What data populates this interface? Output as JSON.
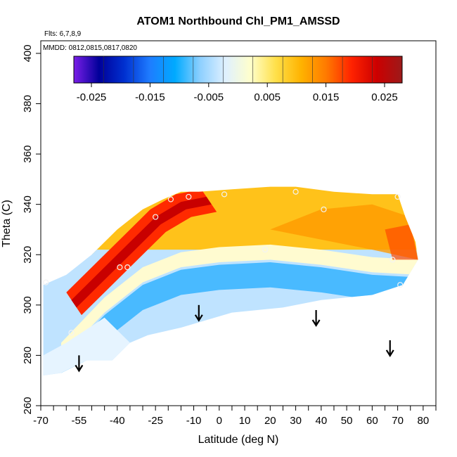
{
  "chart_data": {
    "type": "heatmap",
    "title": "ATOM1 Northbound Chl_PM1_AMSSD",
    "flights_label": "Flts: 6,7,8,9",
    "dates_label": "MMDD: 0812,0815,0817,0820",
    "xlabel": "Latitude (deg N)",
    "ylabel": "Theta (C)",
    "xlim": [
      -70,
      85
    ],
    "ylim": [
      260,
      405
    ],
    "x_ticks": [
      -70,
      -55,
      -40,
      -25,
      -10,
      0,
      10,
      20,
      30,
      40,
      50,
      60,
      70,
      80
    ],
    "x_minor_ticks": [
      -65,
      -60,
      -50,
      -45,
      -35,
      -30,
      -20,
      -15,
      -5,
      5,
      15,
      25,
      35,
      45,
      55,
      65,
      75,
      85
    ],
    "y_ticks": [
      260,
      280,
      300,
      320,
      340,
      360,
      380,
      400
    ],
    "colorbar": {
      "range": [
        -0.028,
        0.028
      ],
      "tick_values": [
        -0.025,
        -0.015,
        -0.005,
        0.005,
        0.015,
        0.025
      ],
      "tick_labels": [
        "-0.025",
        "-0.015",
        "-0.005",
        "0.005",
        "0.015",
        "0.025"
      ],
      "colors": [
        "#7a1ee8",
        "#000099",
        "#0030d0",
        "#1e7cff",
        "#00aaff",
        "#8ed0ff",
        "#dff0ff",
        "#ffffcc",
        "#ffe04a",
        "#ffb300",
        "#ff7a00",
        "#ff2200",
        "#cc0000",
        "#9c1a1a"
      ]
    },
    "field_shape": {
      "outline": [
        [
          -69,
          272
        ],
        [
          -69,
          308
        ],
        [
          -60,
          312
        ],
        [
          -50,
          320
        ],
        [
          -40,
          330
        ],
        [
          -30,
          338
        ],
        [
          -22,
          342
        ],
        [
          -15,
          345
        ],
        [
          -8,
          345
        ],
        [
          5,
          346
        ],
        [
          20,
          347
        ],
        [
          30,
          347
        ],
        [
          45,
          345
        ],
        [
          60,
          344
        ],
        [
          70,
          344
        ],
        [
          73,
          335
        ],
        [
          77,
          325
        ],
        [
          78,
          318
        ],
        [
          72,
          308
        ],
        [
          60,
          304
        ],
        [
          40,
          302
        ],
        [
          25,
          299
        ],
        [
          15,
          298
        ],
        [
          5,
          297
        ],
        [
          -5,
          294
        ],
        [
          -15,
          291
        ],
        [
          -28,
          288
        ],
        [
          -35,
          285
        ],
        [
          -42,
          278
        ],
        [
          -52,
          278
        ],
        [
          -62,
          273
        ]
      ],
      "neutral_line": [
        [
          -62,
          282
        ],
        [
          -45,
          300
        ],
        [
          -30,
          312
        ],
        [
          -15,
          318
        ],
        [
          0,
          320
        ],
        [
          20,
          321
        ],
        [
          40,
          319
        ],
        [
          60,
          316
        ],
        [
          78,
          315
        ]
      ],
      "positive_peak_band": [
        [
          -58,
          302
        ],
        [
          -45,
          315
        ],
        [
          -35,
          325
        ],
        [
          -25,
          335
        ],
        [
          -15,
          341
        ],
        [
          -5,
          343
        ]
      ]
    },
    "samples": [
      {
        "lat": -68,
        "theta": 309
      },
      {
        "lat": -58,
        "theta": 289
      },
      {
        "lat": -39,
        "theta": 315
      },
      {
        "lat": -36,
        "theta": 315
      },
      {
        "lat": -25,
        "theta": 335
      },
      {
        "lat": -19,
        "theta": 342
      },
      {
        "lat": -12,
        "theta": 343
      },
      {
        "lat": 2,
        "theta": 344
      },
      {
        "lat": 18,
        "theta": 322
      },
      {
        "lat": 30,
        "theta": 345
      },
      {
        "lat": 41,
        "theta": 338
      },
      {
        "lat": 68,
        "theta": 318
      },
      {
        "lat": 70,
        "theta": 343
      },
      {
        "lat": 71,
        "theta": 308
      }
    ],
    "arrows": [
      {
        "lat": -55,
        "theta_top": 280
      },
      {
        "lat": -8,
        "theta_top": 300
      },
      {
        "lat": 38,
        "theta_top": 298
      },
      {
        "lat": 67,
        "theta_top": 286
      }
    ]
  }
}
